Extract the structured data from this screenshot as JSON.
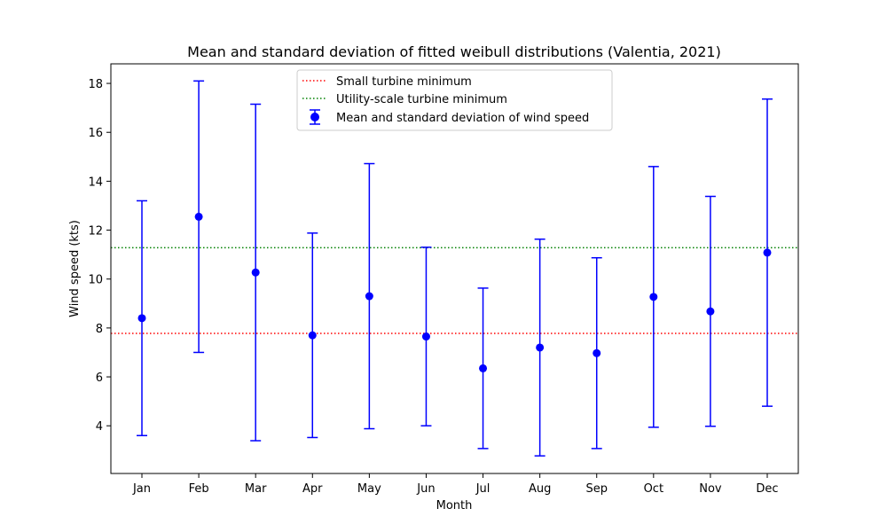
{
  "chart_data": {
    "type": "errorbar",
    "title": "Mean and standard deviation of fitted weibull distributions (Valentia, 2021)",
    "xlabel": "Month",
    "ylabel": "Wind speed (kts)",
    "ylim": [
      2.05,
      18.8
    ],
    "yticks": [
      4,
      6,
      8,
      10,
      12,
      14,
      16,
      18
    ],
    "grid": false,
    "legend_position": "upper-center",
    "categories": [
      "Jan",
      "Feb",
      "Mar",
      "Apr",
      "May",
      "Jun",
      "Jul",
      "Aug",
      "Sep",
      "Oct",
      "Nov",
      "Dec"
    ],
    "series": [
      {
        "name": "Mean and standard deviation of wind speed",
        "color": "#0000ff",
        "values": [
          8.4,
          12.55,
          10.27,
          7.7,
          9.3,
          7.65,
          6.35,
          7.2,
          6.97,
          9.27,
          8.68,
          11.08
        ],
        "errors": [
          4.8,
          5.55,
          6.88,
          4.18,
          5.42,
          3.65,
          3.28,
          4.43,
          3.9,
          5.33,
          4.7,
          6.28
        ]
      }
    ],
    "reference_lines": [
      {
        "name": "Small turbine minimum",
        "value": 7.78,
        "color": "#ff0000",
        "style": "dotted"
      },
      {
        "name": "Utility-scale turbine minimum",
        "value": 11.28,
        "color": "#008000",
        "style": "dotted"
      }
    ]
  }
}
